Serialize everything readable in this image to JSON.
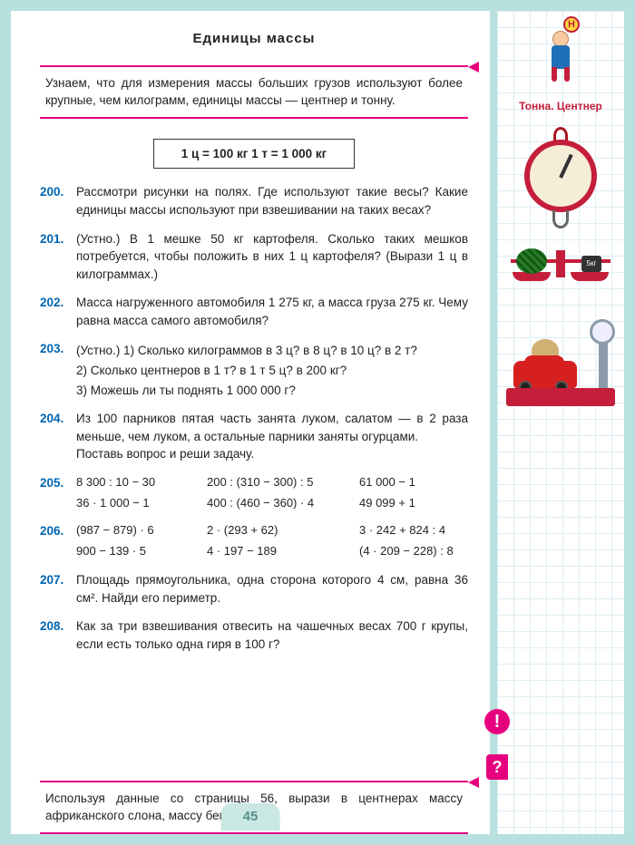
{
  "title": "Единицы массы",
  "intro": "Узнаем, что для измерения массы больших грузов используют более крупные, чем килограмм, единицы массы — центнер и тонну.",
  "formula": "1 ц = 100 кг        1 т = 1 000 кг",
  "sidebar_label": "Тонна. Центнер",
  "weight_label": "5кг",
  "sign_letter": "Н",
  "tasks": {
    "t200": {
      "num": "200.",
      "text": "Рассмотри рисунки на полях. Где используют такие весы? Какие единицы массы используют при взвешивании на таких весах?"
    },
    "t201": {
      "num": "201.",
      "text": "(Устно.) В 1 мешке 50 кг картофеля. Сколько таких мешков потребуется, чтобы положить в них 1 ц картофеля? (Вырази 1 ц в килограммах.)"
    },
    "t202": {
      "num": "202.",
      "text": "Масса нагруженного автомобиля 1 275 кг, а масса груза 275 кг. Чему равна масса самого автомобиля?"
    },
    "t203": {
      "num": "203.",
      "l1": "(Устно.) 1) Сколько килограммов в 3 ц? в 8 ц? в 10 ц? в 2 т?",
      "l2": "2) Сколько центнеров в 1 т? в 1 т 5 ц? в 200 кг?",
      "l3": "3) Можешь ли ты поднять 1 000 000 г?"
    },
    "t204": {
      "num": "204.",
      "text": "Из 100 парников пятая часть занята луком, салатом — в 2 раза меньше, чем луком, а остальные парники заняты огурцами.",
      "text2": "Поставь вопрос и реши задачу."
    },
    "t205": {
      "num": "205.",
      "c": [
        "8 300 : 10 − 30",
        "200 : (310 − 300) : 5",
        "61 000 − 1",
        "36 · 1 000 − 1",
        "400 : (460 − 360) · 4",
        "49 099 + 1"
      ]
    },
    "t206": {
      "num": "206.",
      "c": [
        "(987 − 879) · 6",
        "2 · (293 + 62)",
        "3 · 242 + 824 : 4",
        "900 − 139 · 5",
        "4 · 197 − 189",
        "(4 · 209 − 228) : 8"
      ]
    },
    "t207": {
      "num": "207.",
      "text": "Площадь прямоугольника, одна сторона которого 4 см, равна 36 см². Найди его периметр."
    },
    "t208": {
      "num": "208.",
      "text": "Как за три взвешивания отвесить на чашечных весах 700 г крупы, если есть только одна гиря в 100 г?"
    }
  },
  "footer": "Используя данные со страницы 56, вырази в центнерах массу африканского слона, массу бегемота.",
  "pagenum": "45",
  "excl": "!",
  "qmark": "?"
}
